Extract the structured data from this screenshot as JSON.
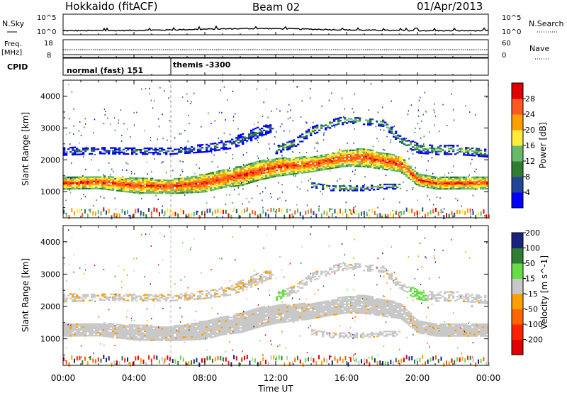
{
  "header": {
    "station": "Hokkaido (fitACF)",
    "beam": "Beam 02",
    "date": "01/Apr/2013"
  },
  "top_panels": {
    "nsky_label": "N.Sky",
    "nsearch_label": "N.Search",
    "noise_ticks": [
      "10^5",
      "10^0"
    ],
    "freq_label": "Freq.",
    "freq_unit": "[MHz]",
    "freq_ticks": [
      "18",
      "8"
    ],
    "nave_label": "Nave",
    "nave_ticks": [
      "60",
      "0"
    ],
    "cpid_label": "CPID",
    "cpid_modes": [
      "normal (fast) 151",
      "themis -3300"
    ]
  },
  "chart_data": [
    {
      "type": "heatmap",
      "panel": "power",
      "title": "",
      "xlabel": "Time UT",
      "ylabel": "Slant Range [km]",
      "x_ticks": [
        "00:00",
        "04:00",
        "08:00",
        "12:00",
        "16:00",
        "20:00",
        "00:00"
      ],
      "x_range_hours": [
        0,
        24
      ],
      "y_ticks": [
        1000,
        2000,
        3000,
        4000
      ],
      "y_range_km": [
        180,
        4500
      ],
      "colorbar": {
        "label": "Power [dB]",
        "ticks": [
          4,
          8,
          12,
          16,
          20,
          24,
          28
        ],
        "range": [
          0,
          30
        ],
        "colors": [
          "#0000ff",
          "#224499",
          "#2e7d32",
          "#66bb6a",
          "#ffeb3b",
          "#ffa000",
          "#ff5722",
          "#e00000"
        ]
      },
      "echo_bands_km": [
        {
          "t": [
            0,
            2,
            4,
            6,
            7,
            8,
            9,
            10,
            11,
            12,
            13,
            14,
            15,
            16,
            17,
            18,
            19,
            20,
            21,
            22,
            23,
            24
          ],
          "center": [
            1250,
            1280,
            1180,
            1150,
            1200,
            1260,
            1400,
            1480,
            1650,
            1750,
            1800,
            1850,
            1950,
            2050,
            2050,
            1950,
            1850,
            1350,
            1250,
            1250,
            1250,
            1250
          ],
          "half_width": [
            180,
            200,
            230,
            220,
            250,
            280,
            280,
            300,
            300,
            280,
            260,
            240,
            240,
            260,
            280,
            260,
            240,
            180,
            180,
            180,
            180,
            180
          ],
          "power_db": 26
        },
        {
          "t": [
            0,
            2,
            4,
            6,
            8,
            9.5,
            10.5,
            11.2,
            11.8
          ],
          "center": [
            2250,
            2280,
            2250,
            2250,
            2350,
            2500,
            2750,
            2900,
            3000
          ],
          "half_width": [
            120,
            100,
            90,
            90,
            120,
            150,
            180,
            150,
            120
          ],
          "power_db": 10
        },
        {
          "t": [
            12,
            13,
            14,
            15,
            16,
            17,
            18,
            19,
            20,
            21,
            22,
            23,
            24
          ],
          "center": [
            2300,
            2500,
            2900,
            3100,
            3250,
            3200,
            3150,
            2600,
            2350,
            2300,
            2300,
            2250,
            2200
          ],
          "half_width": [
            120,
            120,
            120,
            120,
            110,
            110,
            110,
            120,
            150,
            150,
            140,
            130,
            130
          ],
          "power_db": 14
        },
        {
          "t": [
            14,
            15,
            16,
            17,
            18,
            19
          ],
          "center": [
            1200,
            1100,
            1100,
            1100,
            1150,
            1150
          ],
          "half_width": [
            80,
            80,
            80,
            80,
            80,
            80
          ],
          "power_db": 15
        }
      ]
    },
    {
      "type": "heatmap",
      "panel": "velocity",
      "title": "",
      "xlabel": "Time UT",
      "ylabel": "Slant Range [km]",
      "x_ticks": [
        "00:00",
        "04:00",
        "08:00",
        "12:00",
        "16:00",
        "20:00",
        "00:00"
      ],
      "x_range_hours": [
        0,
        24
      ],
      "y_ticks": [
        1000,
        2000,
        3000,
        4000
      ],
      "y_range_km": [
        180,
        4500
      ],
      "colorbar": {
        "label": "Velocity [m s^-1]",
        "ticks": [
          200,
          100,
          50,
          15,
          -15,
          -50,
          -100,
          -200
        ],
        "range": [
          -250,
          250
        ],
        "colors": [
          "#1a237e",
          "#2e7d32",
          "#66dd44",
          "#c8c8c8",
          "#ffa000",
          "#ff6600",
          "#ff2200",
          "#e00000"
        ]
      },
      "ground_scatter_color": "#c8c8c8"
    }
  ]
}
